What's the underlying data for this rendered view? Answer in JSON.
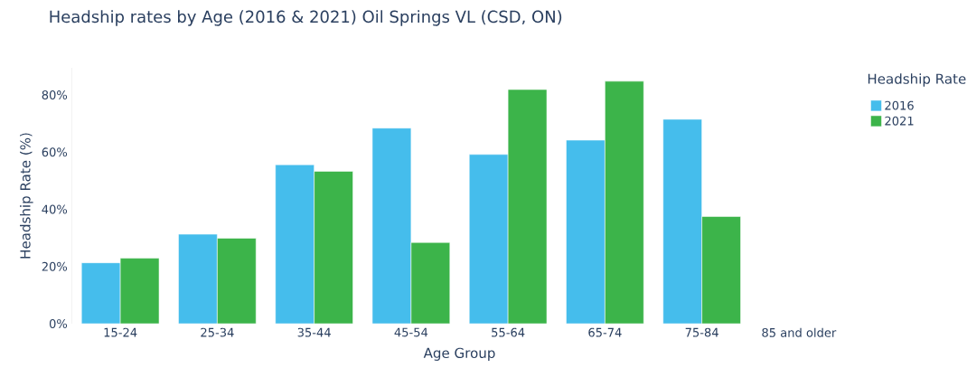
{
  "chart_data": {
    "type": "bar",
    "title": "Headship rates by Age (2016 & 2021) Oil Springs VL (CSD, ON)",
    "xlabel": "Age Group",
    "ylabel": "Headship Rate (%)",
    "legend_title": "Headship Rate",
    "legend": "top right",
    "categories": [
      "15-24",
      "25-34",
      "35-44",
      "45-54",
      "55-64",
      "65-74",
      "75-84",
      "85 and older"
    ],
    "series": [
      {
        "name": "2016",
        "color": "#45bdec",
        "values": [
          21.3,
          31.3,
          55.6,
          68.4,
          59.2,
          64.2,
          71.5,
          null
        ]
      },
      {
        "name": "2021",
        "color": "#3cb44a",
        "values": [
          22.9,
          29.9,
          53.3,
          28.4,
          81.9,
          84.8,
          37.5,
          null
        ]
      }
    ],
    "ylim": [
      0,
      89.5
    ],
    "yticks": [
      {
        "value": 0,
        "label": "0%"
      },
      {
        "value": 20,
        "label": "20%"
      },
      {
        "value": 40,
        "label": "40%"
      },
      {
        "value": 60,
        "label": "60%"
      },
      {
        "value": 80,
        "label": "80%"
      }
    ]
  }
}
